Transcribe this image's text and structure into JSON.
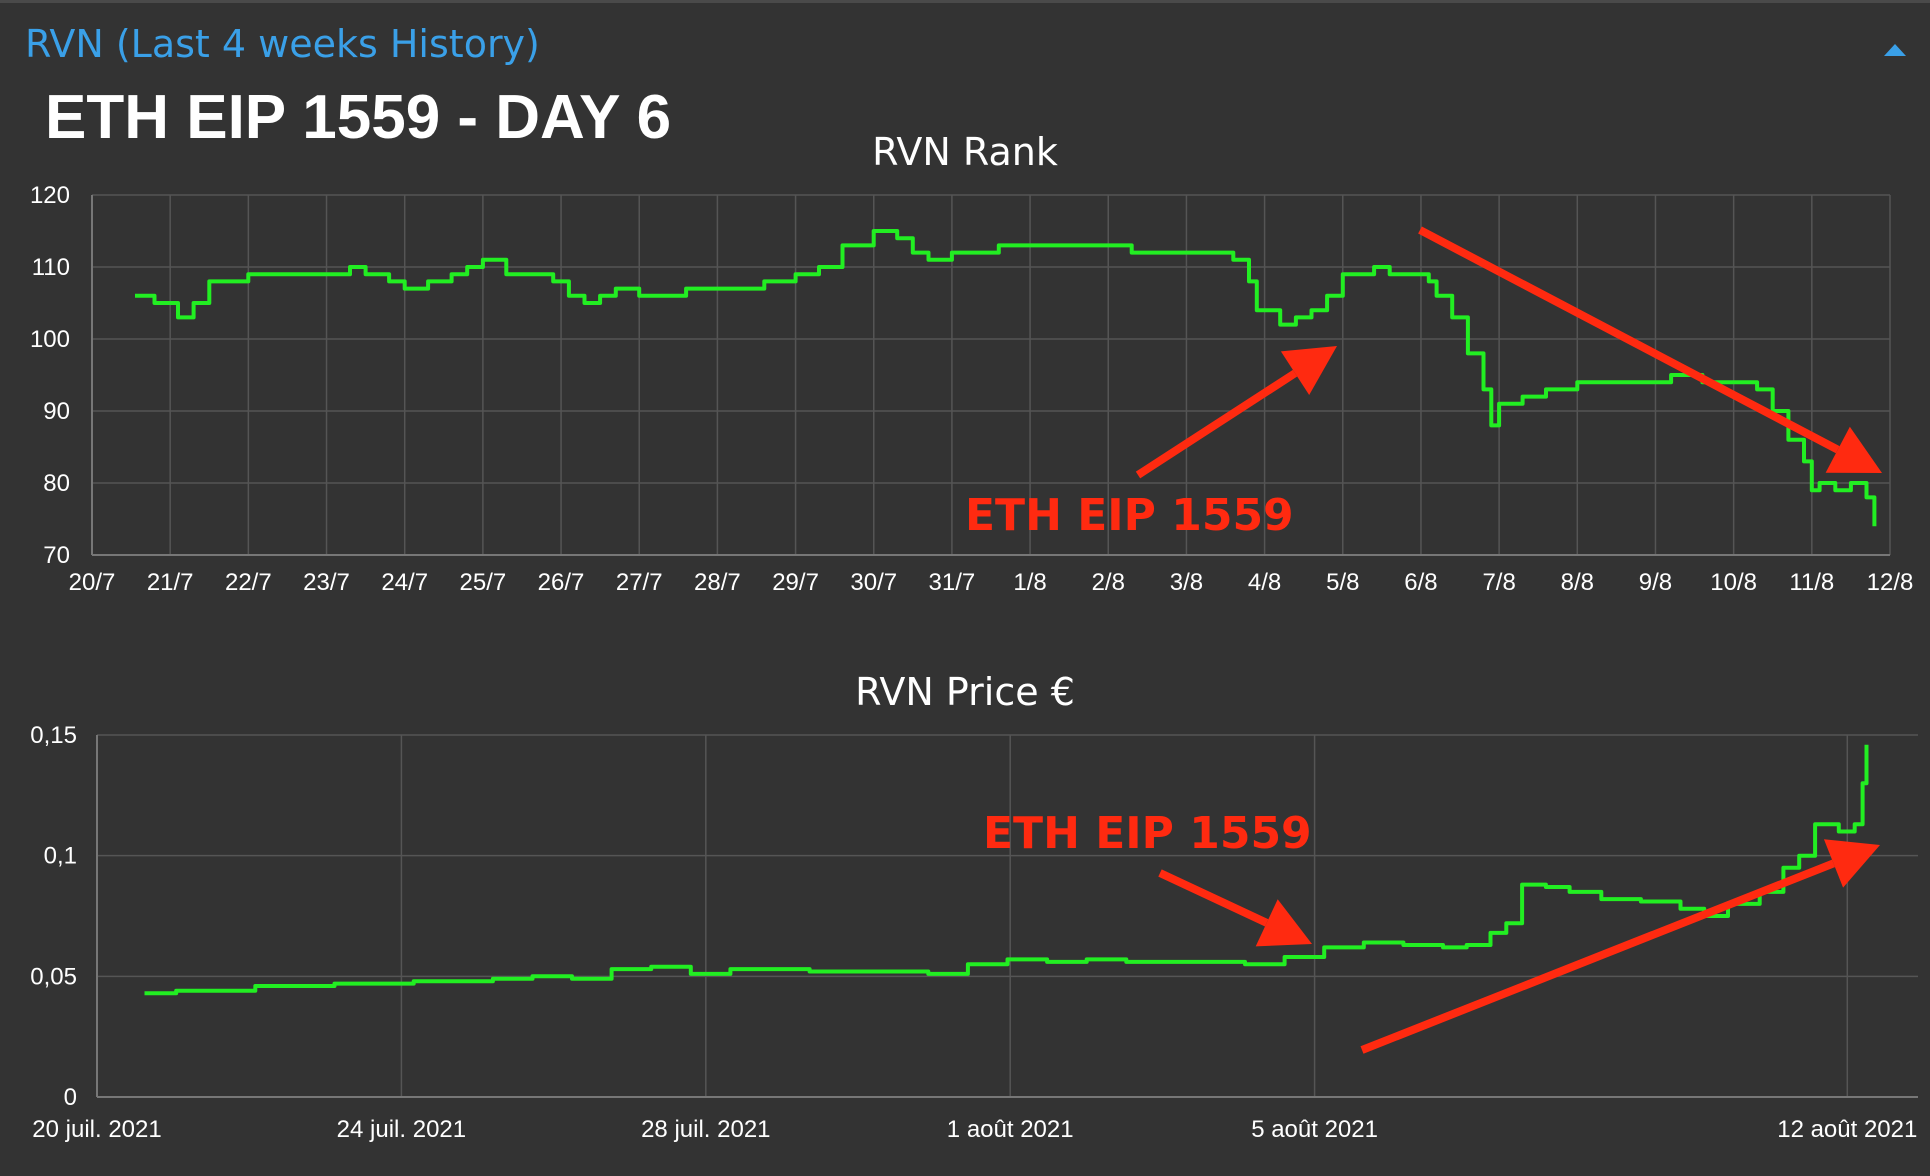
{
  "panel": {
    "title": "RVN (Last 4 weeks History)",
    "collapse_icon": "chevron-up-icon",
    "accent_color": "#3aa0e8"
  },
  "overlay_title": "ETH EIP 1559 - DAY 6",
  "annotation_color": "#ff2a10",
  "line_color": "#22ee22",
  "chart_data": [
    {
      "type": "line",
      "title": "RVN Rank",
      "xlabel": "",
      "ylabel": "",
      "x_ticks": [
        "20/7",
        "21/7",
        "22/7",
        "23/7",
        "24/7",
        "25/7",
        "26/7",
        "27/7",
        "28/7",
        "29/7",
        "30/7",
        "31/7",
        "1/8",
        "2/8",
        "3/8",
        "4/8",
        "5/8",
        "6/8",
        "7/8",
        "8/8",
        "9/8",
        "10/8",
        "11/8",
        "12/8"
      ],
      "xlim": [
        0,
        23
      ],
      "ylim": [
        70,
        120
      ],
      "y_ticks": [
        "70",
        "80",
        "90",
        "100",
        "110",
        "120"
      ],
      "grid": true,
      "series": [
        {
          "x": [
            0.55,
            0.8,
            1.0,
            1.1,
            1.3,
            1.5,
            1.8,
            2.0,
            2.3,
            2.6,
            3.0,
            3.3,
            3.5,
            3.8,
            4.0,
            4.3,
            4.6,
            4.8,
            5.0,
            5.3,
            5.6,
            5.9,
            6.1,
            6.3,
            6.5,
            6.7,
            7.0,
            7.3,
            7.6,
            8.0,
            8.3,
            8.6,
            9.0,
            9.3,
            9.6,
            10.0,
            10.3,
            10.5,
            10.7,
            11.0,
            11.3,
            11.6,
            12.0,
            12.3,
            12.6,
            13.0,
            13.3,
            13.6,
            14.0,
            14.3,
            14.6,
            14.8,
            14.9,
            15.0,
            15.2,
            15.4,
            15.6,
            15.8,
            16.0,
            16.2,
            16.4,
            16.6,
            16.8,
            17.0,
            17.1,
            17.2,
            17.4,
            17.6,
            17.8,
            17.9,
            18.0,
            18.1,
            18.3,
            18.6,
            19.0,
            19.4,
            19.8,
            20.2,
            20.6,
            21.0,
            21.3,
            21.5,
            21.7,
            21.9,
            22.0,
            22.1,
            22.3,
            22.5,
            22.7,
            22.8
          ],
          "y": [
            106,
            105,
            105,
            103,
            105,
            108,
            108,
            109,
            109,
            109,
            109,
            110,
            109,
            108,
            107,
            108,
            109,
            110,
            111,
            109,
            109,
            108,
            106,
            105,
            106,
            107,
            106,
            106,
            107,
            107,
            107,
            108,
            109,
            110,
            113,
            115,
            114,
            112,
            111,
            112,
            112,
            113,
            113,
            113,
            113,
            113,
            112,
            112,
            112,
            112,
            111,
            108,
            104,
            104,
            102,
            103,
            104,
            106,
            109,
            109,
            110,
            109,
            109,
            109,
            108,
            106,
            103,
            98,
            93,
            88,
            91,
            91,
            92,
            93,
            94,
            94,
            94,
            95,
            94,
            94,
            93,
            90,
            86,
            83,
            79,
            80,
            79,
            80,
            78,
            74
          ]
        }
      ]
    },
    {
      "type": "line",
      "title": "RVN Price €",
      "xlabel": "",
      "ylabel": "",
      "x_ticks": [
        "20 juil. 2021",
        "24 juil. 2021",
        "28 juil. 2021",
        "1 août 2021",
        "5 août 2021",
        "12 août 2021"
      ],
      "xlim": [
        0,
        23
      ],
      "ylim": [
        0,
        0.15
      ],
      "y_ticks": [
        "0",
        "0,05",
        "0,1",
        "0,15"
      ],
      "grid": true,
      "series": [
        {
          "x": [
            0.6,
            1.0,
            2.0,
            3.0,
            4.0,
            5.0,
            5.5,
            6.0,
            6.5,
            7.0,
            7.5,
            8.0,
            9.0,
            10.0,
            10.5,
            11.0,
            11.5,
            12.0,
            12.5,
            13.0,
            14.0,
            14.5,
            15.0,
            15.5,
            16.0,
            16.5,
            17.0,
            17.3,
            17.6,
            17.8,
            18.0,
            18.3,
            18.6,
            19.0,
            19.5,
            20.0,
            20.3,
            20.6,
            21.0,
            21.3,
            21.5,
            21.7,
            22.0,
            22.2,
            22.3,
            22.35
          ],
          "y": [
            0.043,
            0.044,
            0.046,
            0.047,
            0.048,
            0.049,
            0.05,
            0.049,
            0.053,
            0.054,
            0.051,
            0.053,
            0.052,
            0.052,
            0.051,
            0.055,
            0.057,
            0.056,
            0.057,
            0.056,
            0.056,
            0.055,
            0.058,
            0.062,
            0.064,
            0.063,
            0.062,
            0.063,
            0.068,
            0.072,
            0.088,
            0.087,
            0.085,
            0.082,
            0.081,
            0.078,
            0.075,
            0.08,
            0.085,
            0.095,
            0.1,
            0.113,
            0.11,
            0.113,
            0.13,
            0.146
          ]
        }
      ]
    }
  ],
  "annotations": {
    "rank_label": "ETH EIP 1559",
    "price_label": "ETH EIP 1559"
  }
}
